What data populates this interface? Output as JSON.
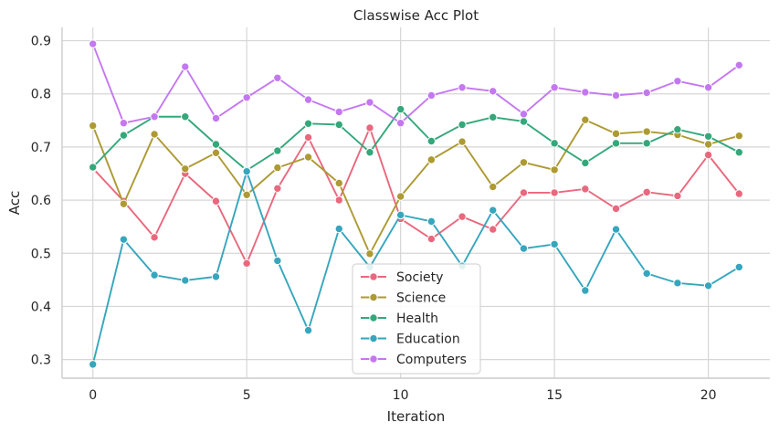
{
  "chart_data": {
    "type": "line",
    "title": "Classwise Acc Plot",
    "xlabel": "Iteration",
    "ylabel": "Acc",
    "xlim": [
      -1,
      22
    ],
    "ylim": [
      0.265,
      0.925
    ],
    "xticks": [
      0,
      5,
      10,
      15,
      20
    ],
    "yticks": [
      0.3,
      0.4,
      0.5,
      0.6,
      0.7,
      0.8,
      0.9
    ],
    "grid": true,
    "legend_position": "bottom-center",
    "x": [
      0,
      1,
      2,
      3,
      4,
      5,
      6,
      7,
      8,
      9,
      10,
      11,
      12,
      13,
      14,
      15,
      16,
      17,
      18,
      19,
      20,
      21
    ],
    "series": [
      {
        "name": "Society",
        "color": "#e9687d",
        "values": [
          0.66,
          0.598,
          0.53,
          0.65,
          0.598,
          0.481,
          0.622,
          0.718,
          0.6,
          0.736,
          0.565,
          0.527,
          0.569,
          0.545,
          0.614,
          0.614,
          0.621,
          0.584,
          0.615,
          0.608,
          0.685,
          0.612
        ]
      },
      {
        "name": "Science",
        "color": "#ad9a33",
        "values": [
          0.74,
          0.593,
          0.724,
          0.659,
          0.689,
          0.61,
          0.661,
          0.681,
          0.632,
          0.499,
          0.607,
          0.676,
          0.71,
          0.625,
          0.671,
          0.657,
          0.751,
          0.725,
          0.729,
          0.723,
          0.705,
          0.721
        ]
      },
      {
        "name": "Health",
        "color": "#33a87a",
        "values": [
          0.662,
          0.722,
          0.757,
          0.757,
          0.705,
          0.656,
          0.693,
          0.744,
          0.742,
          0.69,
          0.771,
          0.711,
          0.742,
          0.756,
          0.748,
          0.707,
          0.67,
          0.707,
          0.707,
          0.733,
          0.72,
          0.69
        ]
      },
      {
        "name": "Education",
        "color": "#36a6bd",
        "values": [
          0.291,
          0.526,
          0.459,
          0.449,
          0.456,
          0.654,
          0.486,
          0.355,
          0.546,
          0.474,
          0.572,
          0.56,
          0.476,
          0.581,
          0.509,
          0.517,
          0.43,
          0.545,
          0.462,
          0.444,
          0.439,
          0.474
        ]
      },
      {
        "name": "Computers",
        "color": "#c478f0",
        "values": [
          0.894,
          0.745,
          0.757,
          0.851,
          0.754,
          0.793,
          0.83,
          0.789,
          0.766,
          0.784,
          0.745,
          0.797,
          0.812,
          0.805,
          0.762,
          0.812,
          0.803,
          0.797,
          0.802,
          0.824,
          0.812,
          0.854
        ]
      }
    ]
  }
}
